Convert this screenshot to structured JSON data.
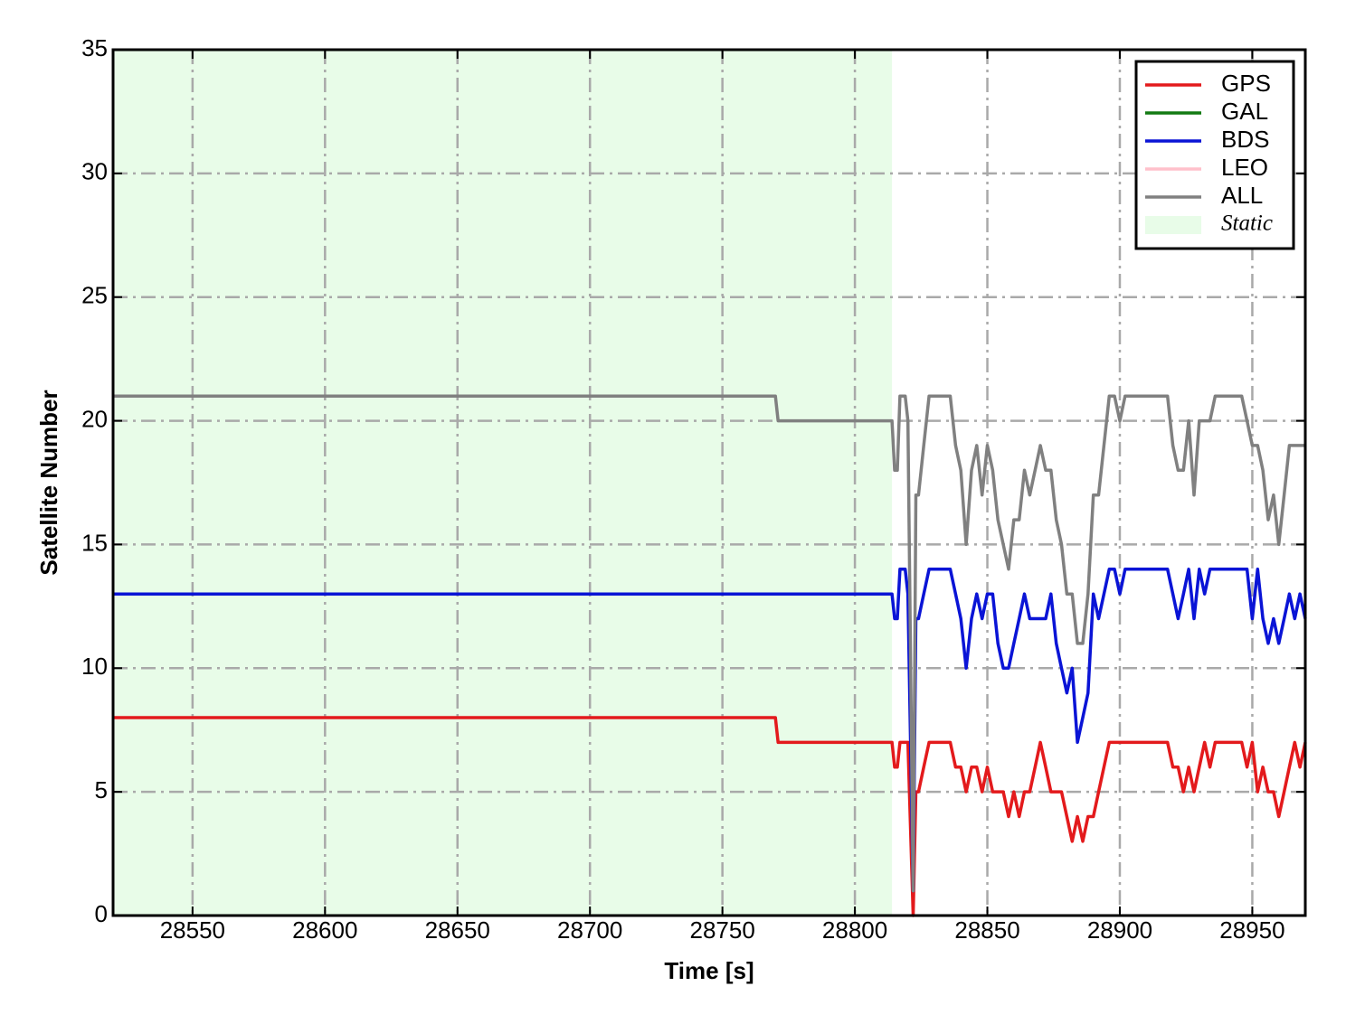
{
  "chart_data": {
    "type": "line",
    "xlabel": "Time [s]",
    "ylabel": "Satellite Number",
    "xlim": [
      28520,
      28970
    ],
    "ylim": [
      0,
      35
    ],
    "xticks": [
      28550,
      28600,
      28650,
      28700,
      28750,
      28800,
      28850,
      28900,
      28950
    ],
    "yticks": [
      0,
      5,
      10,
      15,
      20,
      25,
      30,
      35
    ],
    "grid": true,
    "legend": "upper right",
    "static_label": "Static",
    "static_color": "#e8fce8",
    "static_range": [
      28520,
      28814
    ],
    "x": [
      28520,
      28770,
      28771,
      28814,
      28815,
      28816,
      28817,
      28818,
      28819,
      28820,
      28822,
      28823,
      28824,
      28826,
      28828,
      28830,
      28832,
      28834,
      28836,
      28838,
      28840,
      28842,
      28844,
      28846,
      28848,
      28850,
      28852,
      28854,
      28856,
      28858,
      28860,
      28862,
      28864,
      28866,
      28868,
      28870,
      28872,
      28874,
      28876,
      28878,
      28880,
      28882,
      28884,
      28886,
      28888,
      28890,
      28892,
      28894,
      28896,
      28898,
      28900,
      28902,
      28904,
      28906,
      28908,
      28910,
      28912,
      28914,
      28916,
      28918,
      28920,
      28922,
      28924,
      28926,
      28928,
      28930,
      28932,
      28934,
      28936,
      28938,
      28940,
      28942,
      28944,
      28946,
      28948,
      28950,
      28952,
      28954,
      28956,
      28958,
      28960,
      28962,
      28964,
      28966,
      28968,
      28970
    ],
    "series": [
      {
        "name": "GPS",
        "color": "#e31a1c",
        "values": [
          8,
          8,
          7,
          7,
          6,
          6,
          7,
          7,
          7,
          7,
          0,
          5,
          5,
          6,
          7,
          7,
          7,
          7,
          7,
          6,
          6,
          5,
          6,
          6,
          5,
          6,
          5,
          5,
          5,
          4,
          5,
          4,
          5,
          5,
          6,
          7,
          6,
          5,
          5,
          5,
          4,
          3,
          4,
          3,
          4,
          4,
          5,
          6,
          7,
          7,
          7,
          7,
          7,
          7,
          7,
          7,
          7,
          7,
          7,
          7,
          6,
          6,
          5,
          6,
          5,
          6,
          7,
          6,
          7,
          7,
          7,
          7,
          7,
          7,
          6,
          7,
          5,
          6,
          5,
          5,
          4,
          5,
          6,
          7,
          6,
          7
        ]
      },
      {
        "name": "GAL",
        "color": "#127a12",
        "values": [
          null,
          null,
          null,
          null,
          null,
          null,
          null,
          null,
          null,
          null,
          null,
          null,
          null,
          null,
          null,
          null,
          null,
          null,
          null,
          null,
          null,
          null,
          null,
          null,
          null,
          null,
          null,
          null,
          null,
          null,
          null,
          null,
          null,
          null,
          null,
          null,
          null,
          null,
          null,
          null,
          null,
          null,
          null,
          null,
          null,
          null,
          null,
          null,
          null,
          null,
          null,
          null,
          null,
          null,
          null,
          null,
          null,
          null,
          null,
          null,
          null,
          null,
          null,
          null,
          null,
          null,
          null,
          null,
          null,
          null,
          null,
          null,
          null,
          null,
          null,
          null,
          null,
          null,
          null,
          null,
          null,
          null,
          null,
          null,
          null,
          null
        ]
      },
      {
        "name": "BDS",
        "color": "#0a14d6",
        "values": [
          13,
          13,
          13,
          13,
          12,
          12,
          14,
          14,
          14,
          13,
          1,
          12,
          12,
          13,
          14,
          14,
          14,
          14,
          14,
          13,
          12,
          10,
          12,
          13,
          12,
          13,
          13,
          11,
          10,
          10,
          11,
          12,
          13,
          12,
          12,
          12,
          12,
          13,
          11,
          10,
          9,
          10,
          7,
          8,
          9,
          13,
          12,
          13,
          14,
          14,
          13,
          14,
          14,
          14,
          14,
          14,
          14,
          14,
          14,
          14,
          13,
          12,
          13,
          14,
          12,
          14,
          13,
          14,
          14,
          14,
          14,
          14,
          14,
          14,
          14,
          12,
          14,
          12,
          11,
          12,
          11,
          12,
          13,
          12,
          13,
          12
        ]
      },
      {
        "name": "LEO",
        "color": "#ffc0cb",
        "values": [
          null,
          null,
          null,
          null,
          null,
          null,
          null,
          null,
          null,
          null,
          null,
          null,
          null,
          null,
          null,
          null,
          null,
          null,
          null,
          null,
          null,
          null,
          null,
          null,
          null,
          null,
          null,
          null,
          null,
          null,
          null,
          null,
          null,
          null,
          null,
          null,
          null,
          null,
          null,
          null,
          null,
          null,
          null,
          null,
          null,
          null,
          null,
          null,
          null,
          null,
          null,
          null,
          null,
          null,
          null,
          null,
          null,
          null,
          null,
          null,
          null,
          null,
          null,
          null,
          null,
          null,
          null,
          null,
          null,
          null,
          null,
          null,
          null,
          null,
          null,
          null,
          null,
          null,
          null,
          null,
          null,
          null,
          null,
          null,
          null,
          null
        ]
      },
      {
        "name": "ALL",
        "color": "#808080",
        "values": [
          21,
          21,
          20,
          20,
          18,
          18,
          21,
          21,
          21,
          20,
          1,
          17,
          17,
          19,
          21,
          21,
          21,
          21,
          21,
          19,
          18,
          15,
          18,
          19,
          17,
          19,
          18,
          16,
          15,
          14,
          16,
          16,
          18,
          17,
          18,
          19,
          18,
          18,
          16,
          15,
          13,
          13,
          11,
          11,
          13,
          17,
          17,
          19,
          21,
          21,
          20,
          21,
          21,
          21,
          21,
          21,
          21,
          21,
          21,
          21,
          19,
          18,
          18,
          20,
          17,
          20,
          20,
          20,
          21,
          21,
          21,
          21,
          21,
          21,
          20,
          19,
          19,
          18,
          16,
          17,
          15,
          17,
          19,
          19,
          19,
          19
        ]
      }
    ]
  }
}
